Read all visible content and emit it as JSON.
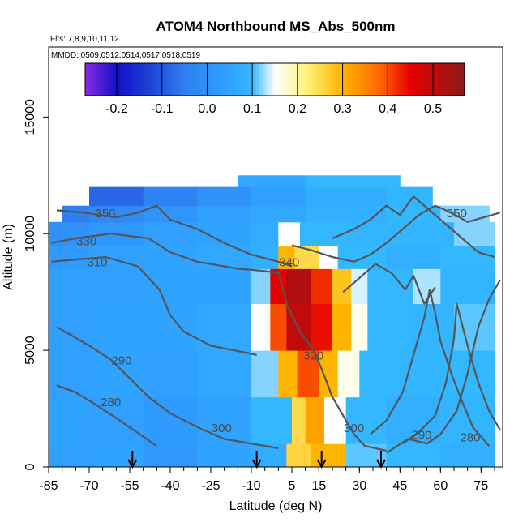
{
  "chart_data": {
    "type": "heatmap",
    "title": "ATOM4 Northbound MS_Abs_500nm",
    "subtitle_flights": "Flts: 7,8,9,10,11,12",
    "subtitle_dates": "MMDD: 0509,0512,0514,0517,0518,0519",
    "xlabel": "Latitude (deg N)",
    "ylabel": "Altitude (m)",
    "xlim": [
      -85,
      83
    ],
    "ylim": [
      0,
      18000
    ],
    "x_ticks": [
      -85,
      -70,
      -55,
      -40,
      -25,
      -10,
      5,
      15,
      30,
      45,
      60,
      75
    ],
    "y_ticks": [
      0,
      5000,
      10000,
      15000
    ],
    "colorbar": {
      "ticks": [
        -0.2,
        -0.1,
        0.0,
        0.1,
        0.2,
        0.3,
        0.4,
        0.5
      ],
      "range": [
        -0.27,
        0.57
      ],
      "stops": [
        {
          "v": -0.27,
          "c": "#8a2be2"
        },
        {
          "v": -0.2,
          "c": "#1010c8"
        },
        {
          "v": -0.13,
          "c": "#1f3fd6"
        },
        {
          "v": -0.05,
          "c": "#2f7ff0"
        },
        {
          "v": 0.03,
          "c": "#2f9bff"
        },
        {
          "v": 0.1,
          "c": "#33b8ff"
        },
        {
          "v": 0.15,
          "c": "#ffffff"
        },
        {
          "v": 0.22,
          "c": "#fff27a"
        },
        {
          "v": 0.3,
          "c": "#ffb400"
        },
        {
          "v": 0.38,
          "c": "#ff6a00"
        },
        {
          "v": 0.45,
          "c": "#e60000"
        },
        {
          "v": 0.57,
          "c": "#8b1a1a"
        }
      ]
    },
    "contour_labels": [
      {
        "text": "350",
        "x": -64,
        "y": 10700
      },
      {
        "text": "330",
        "x": -71,
        "y": 9500
      },
      {
        "text": "310",
        "x": -67,
        "y": 8600
      },
      {
        "text": "290",
        "x": -58,
        "y": 4400
      },
      {
        "text": "280",
        "x": -62,
        "y": 2600
      },
      {
        "text": "300",
        "x": -21,
        "y": 1500
      },
      {
        "text": "340",
        "x": 4,
        "y": 8600
      },
      {
        "text": "320",
        "x": 13,
        "y": 4600
      },
      {
        "text": "300",
        "x": 28,
        "y": 1500
      },
      {
        "text": "290",
        "x": 53,
        "y": 1200
      },
      {
        "text": "280",
        "x": 71,
        "y": 1100
      },
      {
        "text": "350",
        "x": 66,
        "y": 10700
      }
    ],
    "arrow_markers_lat": [
      -54,
      -8,
      16,
      38
    ],
    "cells": [
      {
        "x0": -85,
        "x1": -70,
        "y0": 0,
        "y1": 1000,
        "v": 0.04
      },
      {
        "x0": -70,
        "x1": -50,
        "y0": 0,
        "y1": 1000,
        "v": 0.05
      },
      {
        "x0": -50,
        "x1": -30,
        "y0": 0,
        "y1": 1000,
        "v": 0.02
      },
      {
        "x0": -30,
        "x1": -10,
        "y0": 0,
        "y1": 1000,
        "v": 0.05
      },
      {
        "x0": -10,
        "x1": 3,
        "y0": 0,
        "y1": 1000,
        "v": 0.07
      },
      {
        "x0": 3,
        "x1": 12,
        "y0": 0,
        "y1": 1000,
        "v": 0.26
      },
      {
        "x0": 12,
        "x1": 25,
        "y0": 0,
        "y1": 1000,
        "v": 0.3
      },
      {
        "x0": 25,
        "x1": 40,
        "y0": 0,
        "y1": 1000,
        "v": 0.11
      },
      {
        "x0": 40,
        "x1": 60,
        "y0": 0,
        "y1": 1000,
        "v": 0.1
      },
      {
        "x0": 60,
        "x1": 80,
        "y0": 0,
        "y1": 1000,
        "v": 0.08
      },
      {
        "x0": -85,
        "x1": -70,
        "y0": 1000,
        "y1": 3000,
        "v": 0.05
      },
      {
        "x0": -70,
        "x1": -50,
        "y0": 1000,
        "y1": 3000,
        "v": 0.04
      },
      {
        "x0": -50,
        "x1": -30,
        "y0": 1000,
        "y1": 3000,
        "v": 0.03
      },
      {
        "x0": -30,
        "x1": -10,
        "y0": 1000,
        "y1": 3000,
        "v": 0.05
      },
      {
        "x0": -10,
        "x1": 5,
        "y0": 1000,
        "y1": 3000,
        "v": 0.1
      },
      {
        "x0": 5,
        "x1": 10,
        "y0": 1000,
        "y1": 3000,
        "v": 0.25
      },
      {
        "x0": 10,
        "x1": 17,
        "y0": 1000,
        "y1": 3000,
        "v": 0.32
      },
      {
        "x0": 17,
        "x1": 25,
        "y0": 1000,
        "y1": 3000,
        "v": 0.15
      },
      {
        "x0": 25,
        "x1": 40,
        "y0": 1000,
        "y1": 3000,
        "v": 0.1
      },
      {
        "x0": 40,
        "x1": 60,
        "y0": 1000,
        "y1": 3000,
        "v": 0.08
      },
      {
        "x0": 60,
        "x1": 80,
        "y0": 1000,
        "y1": 3000,
        "v": 0.09
      },
      {
        "x0": -85,
        "x1": -70,
        "y0": 3000,
        "y1": 5000,
        "v": 0.04
      },
      {
        "x0": -70,
        "x1": -50,
        "y0": 3000,
        "y1": 5000,
        "v": 0.05
      },
      {
        "x0": -50,
        "x1": -30,
        "y0": 3000,
        "y1": 5000,
        "v": 0.04
      },
      {
        "x0": -30,
        "x1": -10,
        "y0": 3000,
        "y1": 5000,
        "v": 0.06
      },
      {
        "x0": -10,
        "x1": 0,
        "y0": 3000,
        "y1": 5000,
        "v": 0.12
      },
      {
        "x0": 0,
        "x1": 7,
        "y0": 3000,
        "y1": 5000,
        "v": 0.3
      },
      {
        "x0": 7,
        "x1": 15,
        "y0": 3000,
        "y1": 5000,
        "v": 0.4
      },
      {
        "x0": 15,
        "x1": 22,
        "y0": 3000,
        "y1": 5000,
        "v": 0.3
      },
      {
        "x0": 22,
        "x1": 30,
        "y0": 3000,
        "y1": 5000,
        "v": 0.16
      },
      {
        "x0": 30,
        "x1": 45,
        "y0": 3000,
        "y1": 5000,
        "v": 0.1
      },
      {
        "x0": 45,
        "x1": 60,
        "y0": 3000,
        "y1": 5000,
        "v": 0.09
      },
      {
        "x0": 60,
        "x1": 80,
        "y0": 3000,
        "y1": 5000,
        "v": 0.1
      },
      {
        "x0": -85,
        "x1": -70,
        "y0": 5000,
        "y1": 7000,
        "v": 0.04
      },
      {
        "x0": -70,
        "x1": -50,
        "y0": 5000,
        "y1": 7000,
        "v": 0.05
      },
      {
        "x0": -50,
        "x1": -30,
        "y0": 5000,
        "y1": 7000,
        "v": 0.05
      },
      {
        "x0": -30,
        "x1": -10,
        "y0": 5000,
        "y1": 7000,
        "v": 0.06
      },
      {
        "x0": -10,
        "x1": -3,
        "y0": 5000,
        "y1": 7000,
        "v": 0.15
      },
      {
        "x0": -3,
        "x1": 3,
        "y0": 5000,
        "y1": 7000,
        "v": 0.4
      },
      {
        "x0": 3,
        "x1": 12,
        "y0": 5000,
        "y1": 7000,
        "v": 0.5
      },
      {
        "x0": 12,
        "x1": 20,
        "y0": 5000,
        "y1": 7000,
        "v": 0.44
      },
      {
        "x0": 20,
        "x1": 27,
        "y0": 5000,
        "y1": 7000,
        "v": 0.3
      },
      {
        "x0": 27,
        "x1": 33,
        "y0": 5000,
        "y1": 7000,
        "v": 0.16
      },
      {
        "x0": 33,
        "x1": 50,
        "y0": 5000,
        "y1": 7000,
        "v": 0.1
      },
      {
        "x0": 50,
        "x1": 65,
        "y0": 5000,
        "y1": 7000,
        "v": 0.09
      },
      {
        "x0": 65,
        "x1": 80,
        "y0": 5000,
        "y1": 7000,
        "v": 0.11
      },
      {
        "x0": -85,
        "x1": -70,
        "y0": 7000,
        "y1": 8500,
        "v": 0.04
      },
      {
        "x0": -70,
        "x1": -50,
        "y0": 7000,
        "y1": 8500,
        "v": 0.04
      },
      {
        "x0": -50,
        "x1": -30,
        "y0": 7000,
        "y1": 8500,
        "v": 0.05
      },
      {
        "x0": -30,
        "x1": -10,
        "y0": 7000,
        "y1": 8500,
        "v": 0.05
      },
      {
        "x0": -10,
        "x1": -3,
        "y0": 7000,
        "y1": 8500,
        "v": 0.12
      },
      {
        "x0": -3,
        "x1": 3,
        "y0": 7000,
        "y1": 8500,
        "v": 0.45
      },
      {
        "x0": 3,
        "x1": 12,
        "y0": 7000,
        "y1": 8500,
        "v": 0.52
      },
      {
        "x0": 12,
        "x1": 20,
        "y0": 7000,
        "y1": 8500,
        "v": 0.42
      },
      {
        "x0": 20,
        "x1": 27,
        "y0": 7000,
        "y1": 8500,
        "v": 0.28
      },
      {
        "x0": 27,
        "x1": 33,
        "y0": 7000,
        "y1": 8500,
        "v": 0.14
      },
      {
        "x0": 33,
        "x1": 50,
        "y0": 7000,
        "y1": 8500,
        "v": 0.1
      },
      {
        "x0": 50,
        "x1": 60,
        "y0": 7000,
        "y1": 8500,
        "v": 0.13
      },
      {
        "x0": 60,
        "x1": 80,
        "y0": 7000,
        "y1": 8500,
        "v": 0.09
      },
      {
        "x0": -85,
        "x1": -70,
        "y0": 8500,
        "y1": 9500,
        "v": 0.03
      },
      {
        "x0": -70,
        "x1": -50,
        "y0": 8500,
        "y1": 9500,
        "v": 0.04
      },
      {
        "x0": -50,
        "x1": -30,
        "y0": 8500,
        "y1": 9500,
        "v": 0.05
      },
      {
        "x0": -30,
        "x1": -10,
        "y0": 8500,
        "y1": 9500,
        "v": 0.06
      },
      {
        "x0": -10,
        "x1": 0,
        "y0": 8500,
        "y1": 9500,
        "v": 0.08
      },
      {
        "x0": 0,
        "x1": 6,
        "y0": 8500,
        "y1": 9500,
        "v": 0.3
      },
      {
        "x0": 6,
        "x1": 15,
        "y0": 8500,
        "y1": 9500,
        "v": 0.25
      },
      {
        "x0": 15,
        "x1": 22,
        "y0": 8500,
        "y1": 9500,
        "v": 0.15
      },
      {
        "x0": 22,
        "x1": 40,
        "y0": 8500,
        "y1": 9500,
        "v": 0.1
      },
      {
        "x0": 40,
        "x1": 60,
        "y0": 8500,
        "y1": 9500,
        "v": 0.08
      },
      {
        "x0": 60,
        "x1": 80,
        "y0": 8500,
        "y1": 9500,
        "v": 0.1
      },
      {
        "x0": -85,
        "x1": -70,
        "y0": 9500,
        "y1": 10500,
        "v": 0.0
      },
      {
        "x0": -70,
        "x1": -50,
        "y0": 9500,
        "y1": 10500,
        "v": 0.02
      },
      {
        "x0": -50,
        "x1": -30,
        "y0": 9500,
        "y1": 10500,
        "v": 0.04
      },
      {
        "x0": -30,
        "x1": -10,
        "y0": 9500,
        "y1": 10500,
        "v": 0.05
      },
      {
        "x0": -10,
        "x1": 0,
        "y0": 9500,
        "y1": 10500,
        "v": 0.07
      },
      {
        "x0": 0,
        "x1": 8,
        "y0": 9500,
        "y1": 10500,
        "v": 0.15
      },
      {
        "x0": 8,
        "x1": 25,
        "y0": 9500,
        "y1": 10500,
        "v": 0.1
      },
      {
        "x0": 25,
        "x1": 45,
        "y0": 9500,
        "y1": 10500,
        "v": 0.09
      },
      {
        "x0": 45,
        "x1": 65,
        "y0": 9500,
        "y1": 10500,
        "v": 0.09
      },
      {
        "x0": 65,
        "x1": 80,
        "y0": 9500,
        "y1": 10500,
        "v": 0.12
      },
      {
        "x0": -80,
        "x1": -70,
        "y0": 10500,
        "y1": 11200,
        "v": -0.05
      },
      {
        "x0": -70,
        "x1": -50,
        "y0": 10500,
        "y1": 11200,
        "v": -0.02
      },
      {
        "x0": -50,
        "x1": -30,
        "y0": 10500,
        "y1": 11200,
        "v": 0.01
      },
      {
        "x0": -30,
        "x1": -10,
        "y0": 10500,
        "y1": 11200,
        "v": 0.04
      },
      {
        "x0": -10,
        "x1": 10,
        "y0": 10500,
        "y1": 11200,
        "v": 0.06
      },
      {
        "x0": 10,
        "x1": 40,
        "y0": 10500,
        "y1": 11200,
        "v": 0.08
      },
      {
        "x0": 40,
        "x1": 60,
        "y0": 10500,
        "y1": 11200,
        "v": 0.1
      },
      {
        "x0": 60,
        "x1": 78,
        "y0": 10500,
        "y1": 11200,
        "v": 0.12
      },
      {
        "x0": -70,
        "x1": -50,
        "y0": 11200,
        "y1": 12000,
        "v": -0.08
      },
      {
        "x0": -50,
        "x1": -30,
        "y0": 11200,
        "y1": 12000,
        "v": -0.04
      },
      {
        "x0": -30,
        "x1": -10,
        "y0": 11200,
        "y1": 12000,
        "v": 0.0
      },
      {
        "x0": -10,
        "x1": 10,
        "y0": 11200,
        "y1": 12000,
        "v": 0.04
      },
      {
        "x0": 10,
        "x1": 40,
        "y0": 11200,
        "y1": 12000,
        "v": 0.07
      },
      {
        "x0": 40,
        "x1": 57,
        "y0": 11200,
        "y1": 12000,
        "v": 0.09
      },
      {
        "x0": -15,
        "x1": 10,
        "y0": 12000,
        "y1": 12500,
        "v": 0.06
      },
      {
        "x0": 10,
        "x1": 45,
        "y0": 12000,
        "y1": 12500,
        "v": 0.1
      }
    ]
  }
}
